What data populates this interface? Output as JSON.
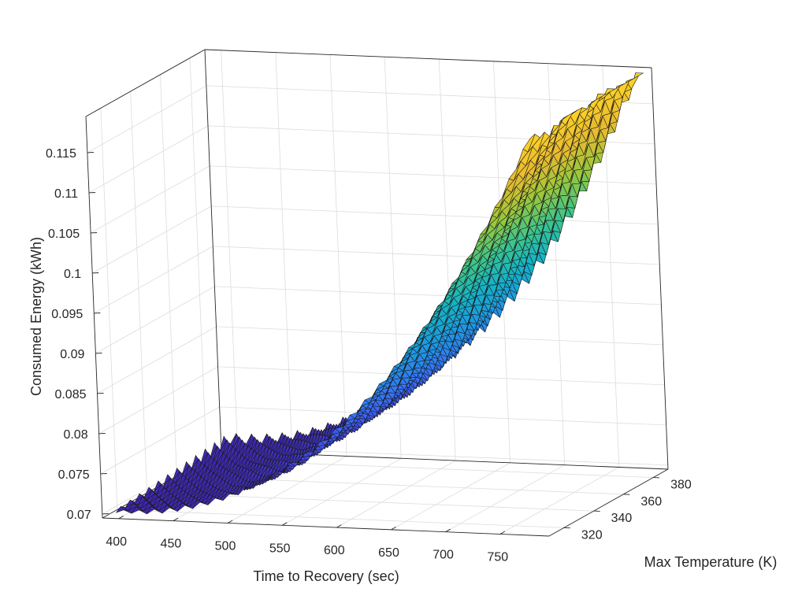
{
  "chart_data": {
    "type": "surface",
    "title": "",
    "xlabel": "Time to Recovery (sec)",
    "ylabel": "Max Temperature (K)",
    "zlabel": "Consumed Energy (kWh)",
    "x_ticks": [
      "400",
      "450",
      "500",
      "550",
      "600",
      "650",
      "700",
      "750"
    ],
    "y_ticks": [
      "320",
      "340",
      "360",
      "380"
    ],
    "z_ticks": [
      "0.07",
      "0.075",
      "0.08",
      "0.085",
      "0.09",
      "0.095",
      "0.1",
      "0.105",
      "0.11",
      "0.115"
    ],
    "xlim": [
      385,
      795
    ],
    "ylim": [
      310,
      390
    ],
    "zlim": [
      0.0695,
      0.1195
    ],
    "x_range": [
      395,
      790
    ],
    "y_range": [
      312,
      388
    ],
    "z_range": [
      0.07,
      0.119
    ],
    "grid": true,
    "colormap": "parula",
    "colors": {
      "low": "#3e26a8",
      "mid": "#1fb0c8",
      "high": "#fcc43a"
    },
    "surface_trend": "Consumed energy rises nonlinearly with time to recovery (about 0.07 kWh near 400 s to about 0.119 kWh near 790 s), with small sawtooth ripples along the temperature direction"
  }
}
